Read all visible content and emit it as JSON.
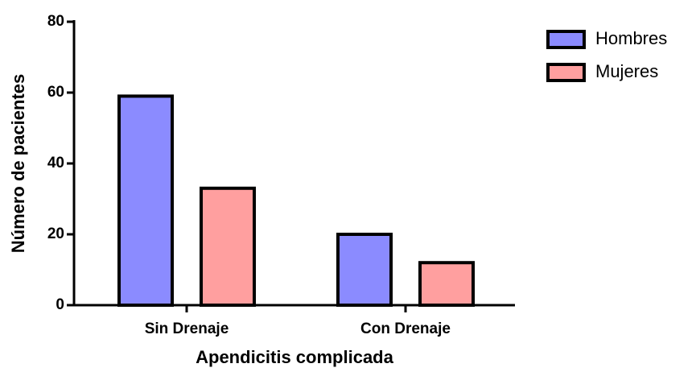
{
  "chart_data": {
    "type": "bar",
    "x_label": "Apendicitis complicada",
    "y_label": "Número de pacientes",
    "categories": [
      "Sin Drenaje",
      "Con Drenaje"
    ],
    "series": [
      {
        "name": "Hombres",
        "color": "#8b8bff",
        "values": [
          59,
          20
        ]
      },
      {
        "name": "Mujeres",
        "color": "#ff9f9f",
        "values": [
          33,
          12
        ]
      }
    ],
    "ylim": [
      0,
      80
    ],
    "yticks": [
      0,
      20,
      40,
      60,
      80
    ],
    "grid": false,
    "legend": "top-right"
  }
}
